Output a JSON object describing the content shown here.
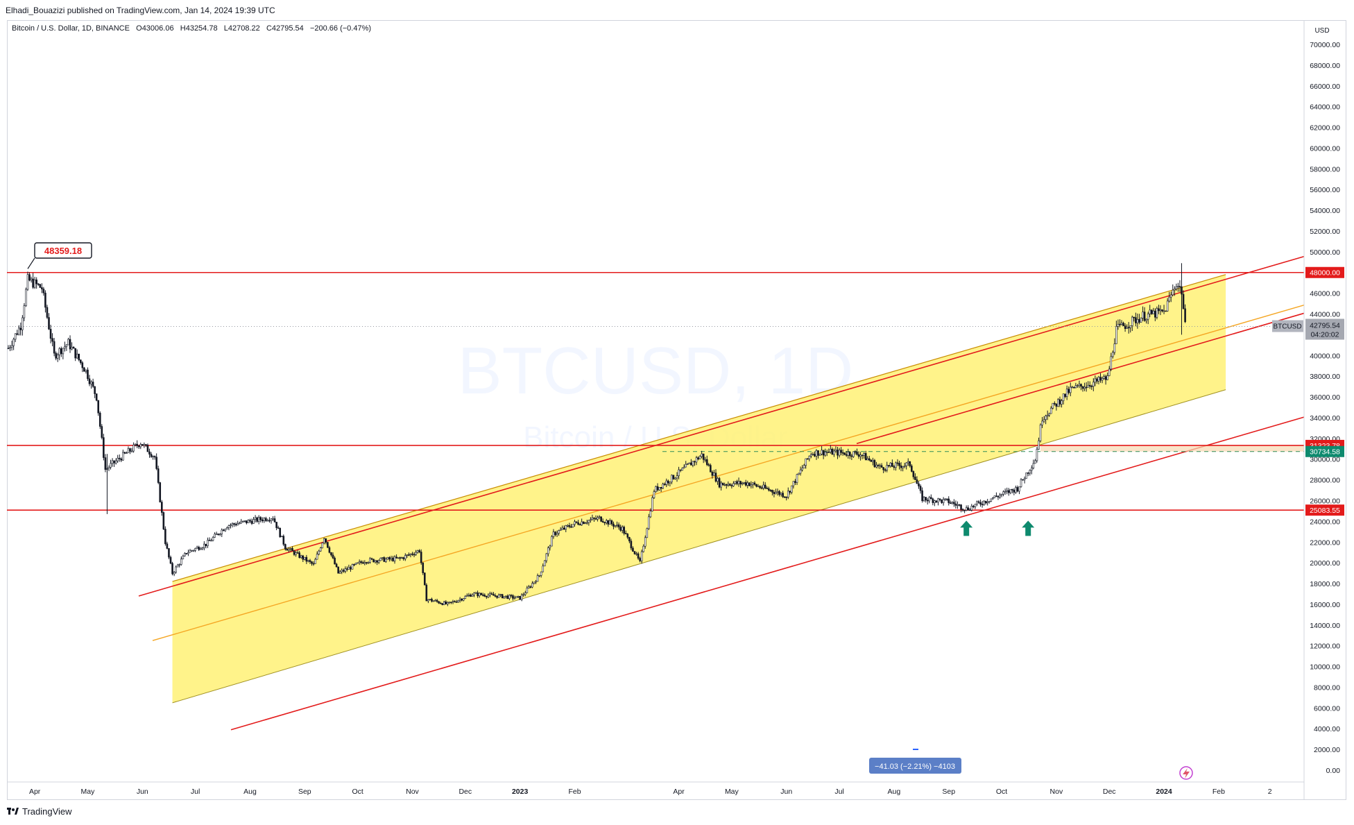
{
  "header": {
    "publisher": "Elhadi_Bouazizi published on TradingView.com, Jan 14, 2024 19:39 UTC"
  },
  "legend": {
    "symbol": "Bitcoin / U.S. Dollar, 1D, BINANCE",
    "open_label": "O",
    "open": "43006.06",
    "high_label": "H",
    "high": "43254.78",
    "low_label": "L",
    "low": "42708.22",
    "close_label": "C",
    "close": "42795.54",
    "change": "−200.66 (−0.47%)"
  },
  "watermark": {
    "line1": "BTCUSD, 1D",
    "line2": "Bitcoin / U.S. Dollar"
  },
  "price_scale": {
    "currency": "USD",
    "current_symbol": "BTCUSD",
    "current_price": "42795.54",
    "countdown": "04:20:02"
  },
  "callouts": {
    "peak_label": "48359.18",
    "measure_label": "−41.03 (−2.21%) −4103"
  },
  "branding": {
    "logo_text": "TradingView"
  },
  "colors": {
    "channel_fill": "#fff176",
    "level_line": "#e31b1b",
    "arrow": "#0e8a6e",
    "candle": "#131722",
    "zone_fill": "#f8d8b0"
  },
  "chart_data": {
    "type": "candlestick",
    "title": "",
    "xlabel": "",
    "ylabel": "",
    "ylim": [
      -1500,
      72000
    ],
    "y_ticks": [
      0,
      2000,
      4000,
      6000,
      8000,
      10000,
      12000,
      14000,
      16000,
      18000,
      20000,
      22000,
      24000,
      26000,
      28000,
      30000,
      32000,
      34000,
      36000,
      38000,
      40000,
      42000,
      44000,
      46000,
      48000,
      50000,
      52000,
      54000,
      56000,
      58000,
      60000,
      62000,
      64000,
      66000,
      68000,
      70000
    ],
    "y_tick_labels": [
      "0.00",
      "2000.00",
      "4000.00",
      "6000.00",
      "8000.00",
      "10000.00",
      "12000.00",
      "14000.00",
      "16000.00",
      "18000.00",
      "20000.00",
      "22000.00",
      "24000.00",
      "26000.00",
      "28000.00",
      "30000.00",
      "32000.00",
      "34000.00",
      "36000.00",
      "38000.00",
      "40000.00",
      "42000.00",
      "44000.00",
      "46000.00",
      "48000.00",
      "50000.00",
      "52000.00",
      "54000.00",
      "56000.00",
      "58000.00",
      "60000.00",
      "62000.00",
      "64000.00",
      "66000.00",
      "68000.00",
      "70000.00"
    ],
    "x_ticks": [
      "Apr",
      "May",
      "Jun",
      "Jul",
      "Aug",
      "Sep",
      "Oct",
      "Nov",
      "Dec",
      "2023",
      "Feb",
      "Apr",
      "May",
      "Jun",
      "Jul",
      "Aug",
      "Sep",
      "Oct",
      "Nov",
      "Dec",
      "2024",
      "Feb",
      "2"
    ],
    "x_tick_dates": [
      "2022-04-01",
      "2022-05-01",
      "2022-06-01",
      "2022-07-01",
      "2022-08-01",
      "2022-09-01",
      "2022-10-01",
      "2022-11-01",
      "2022-12-01",
      "2023-01-01",
      "2023-02-01",
      "2023-04-01",
      "2023-05-01",
      "2023-06-01",
      "2023-07-01",
      "2023-08-01",
      "2023-09-01",
      "2023-10-01",
      "2023-11-01",
      "2023-12-01",
      "2024-01-01",
      "2024-02-01",
      "2024-03-01"
    ],
    "x_range": [
      "2022-03-17",
      "2024-03-20"
    ],
    "series": [
      {
        "x": [
          "2022-03-17",
          "2022-03-24",
          "2022-03-28",
          "2022-04-05",
          "2022-04-12",
          "2022-04-20",
          "2022-04-30",
          "2022-05-06",
          "2022-05-11",
          "2022-05-20",
          "2022-05-31",
          "2022-06-08",
          "2022-06-14",
          "2022-06-18",
          "2022-06-26",
          "2022-07-07",
          "2022-07-19",
          "2022-07-28",
          "2022-08-14",
          "2022-08-21",
          "2022-09-06",
          "2022-09-12",
          "2022-09-20",
          "2022-10-05",
          "2022-10-25",
          "2022-11-05",
          "2022-11-09",
          "2022-11-21",
          "2022-12-05",
          "2022-12-20",
          "2023-01-01",
          "2023-01-12",
          "2023-01-20",
          "2023-02-01",
          "2023-02-15",
          "2023-02-28",
          "2023-03-10",
          "2023-03-18",
          "2023-03-30",
          "2023-04-14",
          "2023-04-24",
          "2023-05-10",
          "2023-06-01",
          "2023-06-15",
          "2023-06-23",
          "2023-07-13",
          "2023-07-24",
          "2023-08-10",
          "2023-08-17",
          "2023-09-01",
          "2023-09-11",
          "2023-09-25",
          "2023-10-10",
          "2023-10-20",
          "2023-10-24",
          "2023-11-09",
          "2023-11-30",
          "2023-12-05",
          "2023-12-20",
          "2024-01-01",
          "2024-01-08",
          "2024-01-11",
          "2024-01-13"
        ],
        "values": [
          40700,
          42900,
          47300,
          46500,
          40000,
          41200,
          38500,
          36000,
          29000,
          30200,
          31600,
          30200,
          22000,
          19000,
          21000,
          21800,
          23600,
          23900,
          24400,
          21500,
          19800,
          22500,
          19000,
          20200,
          20400,
          21200,
          16500,
          16000,
          17000,
          16800,
          16600,
          18800,
          22800,
          23800,
          24300,
          23300,
          20000,
          27000,
          28400,
          30400,
          27600,
          27700,
          26500,
          30600,
          30700,
          30500,
          29200,
          29500,
          26200,
          25900,
          25200,
          26200,
          27200,
          30000,
          34000,
          36700,
          37800,
          42500,
          43800,
          44200,
          47000,
          46200,
          42800
        ]
      }
    ],
    "annotations": {
      "horizontal_levels": [
        48000,
        31323.78,
        25083.55
      ],
      "horizontal_level_labels": [
        "48000.00",
        "31323.78",
        "25083.55"
      ],
      "zone_label_bottom": "30734.58",
      "zone": [
        30734.58,
        31323.78
      ],
      "peak": {
        "date": "2022-03-28",
        "value": 48359.18
      },
      "up_arrows": [
        "2023-09-11",
        "2023-10-16"
      ],
      "rising_channel": "yellow band with orange midline and four parallel rising red trendlines"
    }
  }
}
